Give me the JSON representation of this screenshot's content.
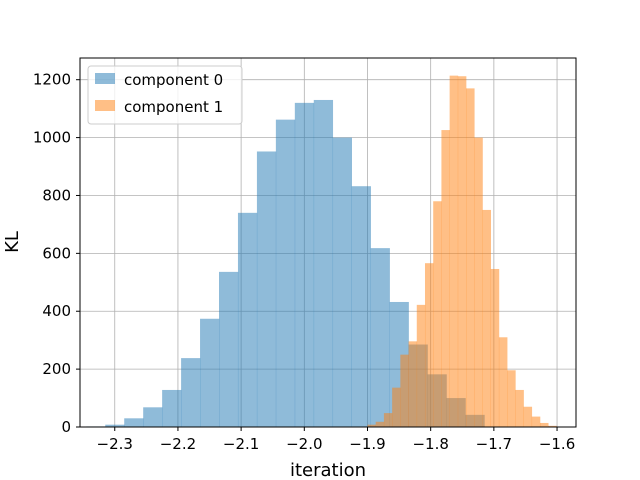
{
  "chart_data": {
    "type": "histogram",
    "title": "",
    "xlabel": "iteration",
    "ylabel": "KL",
    "xlim": [
      -2.355,
      -1.57
    ],
    "ylim": [
      0,
      1275
    ],
    "xticks": [
      -2.3,
      -2.2,
      -2.1,
      -2.0,
      -1.9,
      -1.8,
      -1.7,
      -1.6
    ],
    "xtick_labels": [
      "−2.3",
      "−2.2",
      "−2.1",
      "−2.0",
      "−1.9",
      "−1.8",
      "−1.7",
      "−1.6"
    ],
    "yticks": [
      0,
      200,
      400,
      600,
      800,
      1000,
      1200
    ],
    "ytick_labels": [
      "0",
      "200",
      "400",
      "600",
      "800",
      "1000",
      "1200"
    ],
    "grid": true,
    "legend_position": "top-left",
    "series": [
      {
        "name": "component 0",
        "color": "#1f77b4",
        "alpha": 0.5,
        "bin_edges": [
          -2.345,
          -2.315,
          -2.285,
          -2.255,
          -2.225,
          -2.195,
          -2.165,
          -2.135,
          -2.105,
          -2.075,
          -2.045,
          -2.015,
          -1.985,
          -1.955,
          -1.925,
          -1.895,
          -1.865,
          -1.835,
          -1.805,
          -1.775,
          -1.745,
          -1.715
        ],
        "counts": [
          2,
          8,
          30,
          68,
          128,
          238,
          374,
          536,
          740,
          952,
          1062,
          1120,
          1130,
          1000,
          832,
          618,
          432,
          285,
          182,
          100,
          42
        ]
      },
      {
        "name": "component 1",
        "color": "#ff7f0e",
        "alpha": 0.5,
        "bin_edges": [
          -1.9,
          -1.887,
          -1.874,
          -1.861,
          -1.848,
          -1.835,
          -1.822,
          -1.809,
          -1.796,
          -1.783,
          -1.77,
          -1.757,
          -1.744,
          -1.731,
          -1.718,
          -1.705,
          -1.692,
          -1.679,
          -1.666,
          -1.653,
          -1.64,
          -1.627,
          -1.614,
          -1.601
        ],
        "counts": [
          8,
          18,
          48,
          136,
          250,
          296,
          422,
          566,
          780,
          1026,
          1214,
          1212,
          1170,
          1000,
          750,
          546,
          310,
          196,
          128,
          70,
          36,
          14,
          4
        ]
      }
    ]
  }
}
